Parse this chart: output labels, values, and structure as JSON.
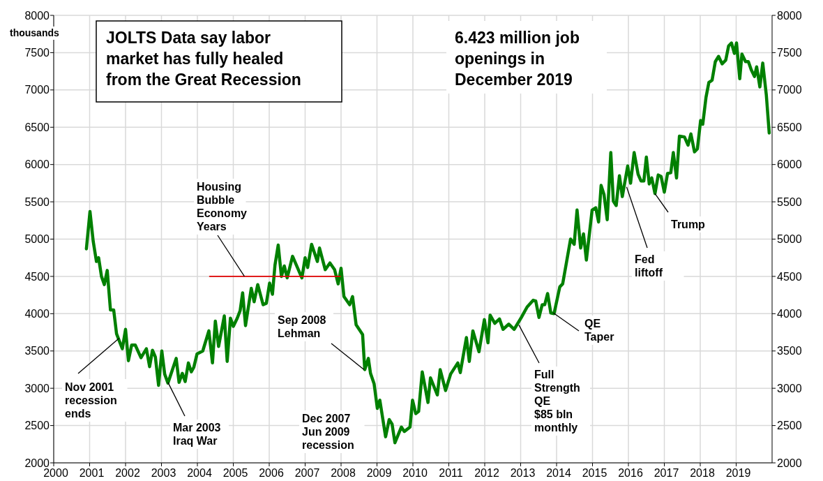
{
  "chart_data": {
    "type": "line",
    "title": "JOLTS Data say labor\nmarket has fully healed\nfrom the Great Recession",
    "subtitle": "6.423 million job\nopenings in\nDecember 2019",
    "ylabel": "thousands",
    "xlim": [
      2000,
      2020
    ],
    "xticks": [
      2000,
      2001,
      2002,
      2003,
      2004,
      2005,
      2006,
      2007,
      2008,
      2009,
      2010,
      2011,
      2012,
      2013,
      2014,
      2015,
      2016,
      2017,
      2018,
      2019
    ],
    "ylim": [
      2000,
      8000
    ],
    "yticks": [
      2000,
      2500,
      3000,
      3500,
      4000,
      4500,
      5000,
      5500,
      6000,
      6500,
      7000,
      7500,
      8000
    ],
    "y2lim": [
      2000,
      8000
    ],
    "y2ticks": [
      2000,
      2500,
      3000,
      3500,
      4000,
      4500,
      5000,
      5500,
      6000,
      6500,
      7000,
      7500,
      8000
    ],
    "grid": true,
    "series": [
      {
        "color": "#008000",
        "x": [
          2000.91,
          2001.01,
          2001.1,
          2001.19,
          2001.25,
          2001.33,
          2001.41,
          2001.49,
          2001.58,
          2001.67,
          2001.75,
          2001.91,
          2002.0,
          2002.08,
          2002.17,
          2002.27,
          2002.43,
          2002.58,
          2002.67,
          2002.75,
          2002.83,
          2002.92,
          2003.01,
          2003.09,
          2003.18,
          2003.41,
          2003.49,
          2003.58,
          2003.66,
          2003.75,
          2003.83,
          2003.9,
          2003.99,
          2004.15,
          2004.32,
          2004.42,
          2004.5,
          2004.59,
          2004.75,
          2004.83,
          2004.92,
          2005.0,
          2005.11,
          2005.19,
          2005.26,
          2005.34,
          2005.5,
          2005.58,
          2005.68,
          2005.83,
          2005.92,
          2006.01,
          2006.09,
          2006.16,
          2006.25,
          2006.34,
          2006.42,
          2006.5,
          2006.65,
          2006.91,
          2007.0,
          2007.07,
          2007.18,
          2007.34,
          2007.4,
          2007.56,
          2007.69,
          2007.82,
          2007.92,
          2008.0,
          2008.08,
          2008.24,
          2008.32,
          2008.42,
          2008.6,
          2008.66,
          2008.76,
          2008.82,
          2008.92,
          2009.01,
          2009.08,
          2009.24,
          2009.34,
          2009.42,
          2009.5,
          2009.68,
          2009.76,
          2009.92,
          2009.99,
          2010.08,
          2010.16,
          2010.26,
          2010.42,
          2010.49,
          2010.68,
          2010.76,
          2010.91,
          2011.05,
          2011.25,
          2011.32,
          2011.49,
          2011.57,
          2011.67,
          2011.84,
          2011.99,
          2012.09,
          2012.15,
          2012.28,
          2012.41,
          2012.51,
          2012.67,
          2012.82,
          2013.02,
          2013.18,
          2013.35,
          2013.42,
          2013.51,
          2013.6,
          2013.67,
          2013.75,
          2013.84,
          2013.93,
          2014.09,
          2014.17,
          2014.28,
          2014.39,
          2014.49,
          2014.57,
          2014.67,
          2014.75,
          2014.83,
          2014.99,
          2015.09,
          2015.17,
          2015.24,
          2015.32,
          2015.41,
          2015.51,
          2015.58,
          2015.66,
          2015.75,
          2015.83,
          2015.98,
          2016.06,
          2016.16,
          2016.27,
          2016.35,
          2016.43,
          2016.5,
          2016.58,
          2016.65,
          2016.74,
          2016.83,
          2016.91,
          2017.0,
          2017.09,
          2017.18,
          2017.25,
          2017.34,
          2017.42,
          2017.56,
          2017.66,
          2017.74,
          2017.84,
          2017.92,
          2018.01,
          2018.07,
          2018.16,
          2018.24,
          2018.33,
          2018.42,
          2018.51,
          2018.61,
          2018.71,
          2018.79,
          2018.87,
          2018.95,
          2019.01,
          2019.1,
          2019.16,
          2019.26,
          2019.34,
          2019.42,
          2019.51,
          2019.57,
          2019.66,
          2019.74,
          2019.84,
          2019.92
        ],
        "values": [
          4870,
          5370,
          4970,
          4700,
          4750,
          4500,
          4390,
          4580,
          4050,
          4050,
          3730,
          3530,
          3790,
          3370,
          3580,
          3580,
          3410,
          3530,
          3290,
          3510,
          3420,
          3040,
          3500,
          3190,
          3070,
          3400,
          3080,
          3200,
          3090,
          3340,
          3220,
          3280,
          3460,
          3500,
          3770,
          3340,
          3900,
          3560,
          3970,
          3360,
          3940,
          3830,
          3940,
          4040,
          4280,
          3840,
          4340,
          4160,
          4390,
          4120,
          4140,
          4410,
          4260,
          4650,
          4920,
          4500,
          4640,
          4480,
          4770,
          4480,
          4750,
          4620,
          4930,
          4700,
          4880,
          4590,
          4680,
          4590,
          4400,
          4610,
          4230,
          4120,
          4230,
          3850,
          3720,
          3250,
          3400,
          3200,
          3060,
          2730,
          2840,
          2350,
          2580,
          2520,
          2270,
          2480,
          2420,
          2480,
          2840,
          2660,
          2690,
          3220,
          2810,
          3140,
          2910,
          3250,
          2970,
          3190,
          3340,
          3210,
          3680,
          3360,
          3770,
          3490,
          3920,
          3610,
          3980,
          3870,
          3930,
          3790,
          3860,
          3790,
          3950,
          4090,
          4180,
          4170,
          3950,
          4120,
          4120,
          4270,
          4010,
          4000,
          4360,
          4400,
          4700,
          5000,
          4930,
          5390,
          4880,
          5070,
          4720,
          5390,
          5420,
          5230,
          5720,
          5600,
          5260,
          6160,
          5510,
          5450,
          5850,
          5570,
          5980,
          5750,
          6160,
          5870,
          5780,
          5780,
          6100,
          5740,
          5820,
          5610,
          5860,
          5840,
          5630,
          5880,
          5890,
          6160,
          5820,
          6380,
          6370,
          6260,
          6410,
          6170,
          6210,
          6590,
          6540,
          6900,
          7100,
          7130,
          7380,
          7450,
          7350,
          7400,
          7590,
          7630,
          7490,
          7630,
          7150,
          7480,
          7380,
          7380,
          7270,
          7180,
          7310,
          7040,
          7360,
          6930,
          6423
        ]
      },
      {
        "color": "#e00000",
        "x": [
          2004.34,
          2007.98
        ],
        "values": [
          4500,
          4500
        ]
      }
    ],
    "annotations": [
      {
        "text": "Nov 2001\nrecession\nends",
        "x": 2001.82,
        "y": 3670
      },
      {
        "text": "Mar 2003\nIraq War",
        "x": 2003.18,
        "y": 3080
      },
      {
        "text": "Housing\nBubble\nEconomy\nYears",
        "x": 2005.31,
        "y": 4500
      },
      {
        "text": "Sep 2008\nLehman",
        "x": 2008.64,
        "y": 3250
      },
      "Dec 2007\nJun 2009\nrecession",
      {
        "text": "Full\nStrength\nQE\n$85 bln\nmonthly",
        "x": 2012.95,
        "y": 3850
      },
      {
        "text": "QE\nTaper",
        "x": 2013.91,
        "y": 4010
      },
      {
        "text": "Fed\nliftoff",
        "x": 2015.95,
        "y": 5700
      },
      {
        "text": "Trump",
        "x": 2016.74,
        "y": 5610
      }
    ]
  }
}
